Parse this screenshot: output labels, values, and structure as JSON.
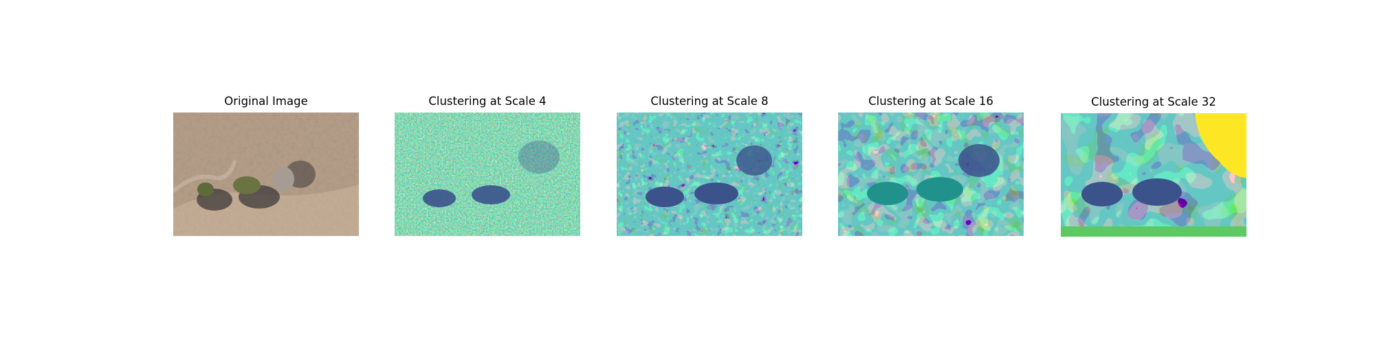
{
  "panels": [
    {
      "title": "Original Image",
      "image": "aerial photo of dry terrain with shrubs and shadows"
    },
    {
      "title": "Clustering at Scale 4",
      "image": "fine-grained cluster map"
    },
    {
      "title": "Clustering at Scale 8",
      "image": "medium-grained cluster map"
    },
    {
      "title": "Clustering at Scale 16",
      "image": "coarse cluster map"
    },
    {
      "title": "Clustering at Scale 32",
      "image": "very coarse cluster map"
    }
  ],
  "colors": {
    "viridis_purple": "#440154",
    "viridis_blue": "#3b528b",
    "viridis_teal": "#21918c",
    "viridis_green": "#5ec962",
    "viridis_yellow": "#fde725",
    "sand": "#b89e84"
  }
}
